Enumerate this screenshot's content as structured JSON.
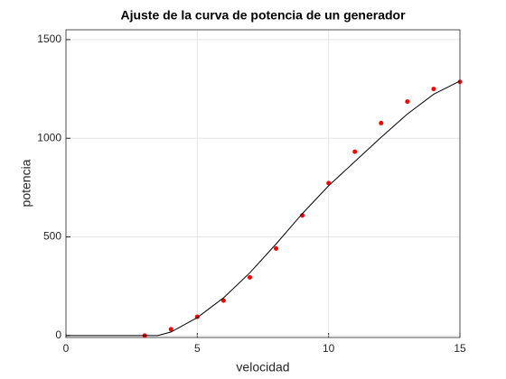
{
  "chart_data": {
    "type": "scatter",
    "title": "Ajuste de la curva de potencia de un generador",
    "x_label": "velocidad",
    "y_label": "potencia",
    "xlim": [
      0,
      15
    ],
    "xticks": [
      0,
      5,
      10,
      15
    ],
    "ylim": [
      -10,
      1550
    ],
    "yticks": [
      0,
      500,
      1000,
      1500
    ],
    "grid": true,
    "series": [
      {
        "type": "scatter",
        "color": "#ff0000",
        "x": [
          3,
          4,
          5,
          6,
          7,
          8,
          9,
          10,
          11,
          12,
          13,
          14,
          15
        ],
        "values": [
          0,
          32,
          95,
          177,
          295,
          441,
          609,
          773,
          932,
          1077,
          1186,
          1250,
          1286
        ]
      },
      {
        "type": "line",
        "color": "#000000",
        "x": [
          0,
          3.5,
          4,
          5,
          6,
          7,
          8,
          9,
          10,
          11,
          12,
          13,
          14,
          15
        ],
        "values": [
          0,
          0,
          18,
          91,
          191,
          318,
          464,
          618,
          759,
          882,
          1005,
          1123,
          1223,
          1290
        ]
      }
    ]
  }
}
